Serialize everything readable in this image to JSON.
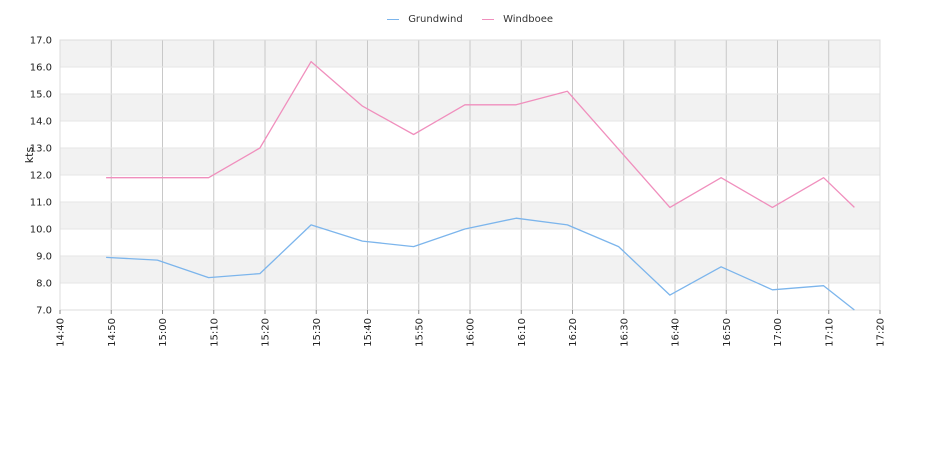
{
  "chart_data": {
    "type": "line",
    "title": "",
    "xlabel": "",
    "ylabel": "kts",
    "x_ticks": [
      "14:40",
      "14:50",
      "15:00",
      "15:10",
      "15:20",
      "15:30",
      "15:40",
      "15:50",
      "16:00",
      "16:10",
      "16:20",
      "16:30",
      "16:40",
      "16:50",
      "17:00",
      "17:10",
      "17:20"
    ],
    "y_ticks": [
      "7.0",
      "8.0",
      "9.0",
      "10.0",
      "11.0",
      "12.0",
      "13.0",
      "14.0",
      "15.0",
      "16.0",
      "17.0"
    ],
    "ylim": [
      7,
      17
    ],
    "xlim": [
      "14:40",
      "17:20"
    ],
    "grid": true,
    "legend_position": "top-center",
    "x": [
      "14:49",
      "14:59",
      "15:09",
      "15:19",
      "15:29",
      "15:39",
      "15:49",
      "15:59",
      "16:09",
      "16:19",
      "16:29",
      "16:39",
      "16:49",
      "16:59",
      "17:09",
      "17:15"
    ],
    "series": [
      {
        "name": "Grundwind",
        "color": "#7cb5ec",
        "values": [
          8.95,
          8.85,
          8.2,
          8.35,
          10.15,
          9.55,
          9.35,
          10.0,
          10.4,
          10.15,
          9.35,
          7.55,
          8.6,
          7.75,
          7.9,
          7.0
        ]
      },
      {
        "name": "Windboee",
        "color": "#f08fbd",
        "values": [
          11.9,
          11.9,
          11.9,
          13.0,
          16.2,
          14.55,
          13.5,
          14.6,
          14.6,
          15.1,
          12.95,
          10.8,
          11.9,
          10.8,
          11.9,
          10.8
        ]
      }
    ]
  }
}
